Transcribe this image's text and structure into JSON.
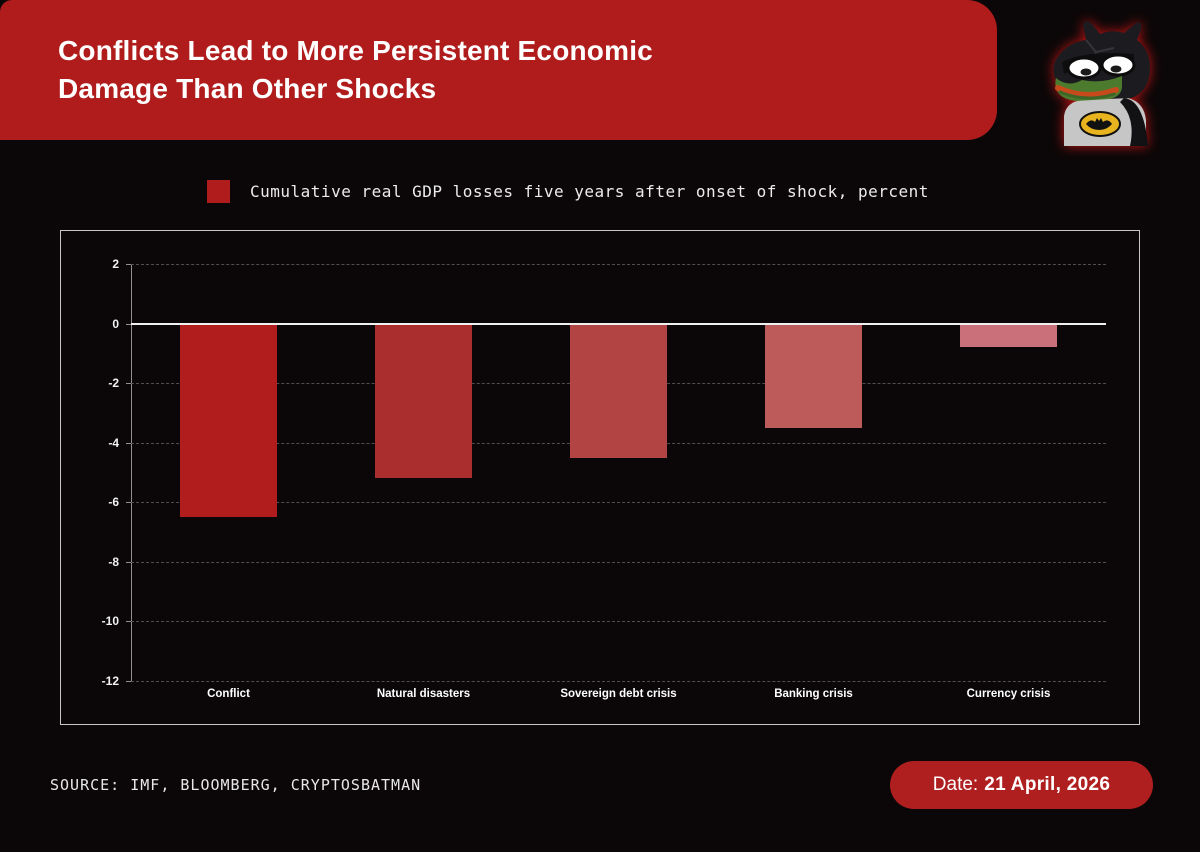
{
  "header": {
    "title_line1": "Conflicts Lead to More Persistent Economic",
    "title_line2": "Damage Than Other Shocks"
  },
  "icons": {
    "mascot": "batman-pepe-mascot-icon"
  },
  "legend": {
    "label": "Cumulative real GDP losses five years after onset of shock, percent",
    "swatch_color": "#b01c1c"
  },
  "chart_data": {
    "type": "bar",
    "title": "Cumulative real GDP losses five years after onset of shock, percent",
    "categories": [
      "Conflict",
      "Natural disasters",
      "Sovereign debt crisis",
      "Banking crisis",
      "Currency crisis"
    ],
    "values": [
      -6.5,
      -5.2,
      -4.5,
      -3.5,
      -0.8
    ],
    "bar_colors": [
      "#b11c1c",
      "#aa2e2e",
      "#b34444",
      "#bd5a5a",
      "#c9707a"
    ],
    "xlabel": "",
    "ylabel": "",
    "ylim": [
      -12,
      2
    ],
    "yticks": [
      2,
      0,
      -2,
      -4,
      -6,
      -8,
      -10,
      -12
    ],
    "grid": "horizontal dashed",
    "zero_line": true,
    "legend_position": "top"
  },
  "footer": {
    "source": "SOURCE: IMF, BLOOMBERG, CRYPTOSBATMAN",
    "date_label": "Date:",
    "date_value": "21 April, 2026"
  },
  "colors": {
    "background": "#0b0708",
    "header_red": "#b01c1c",
    "pill_red": "#b01f1f",
    "chart_border": "#c7c7c7",
    "gridline": "#4f4f4f",
    "zero_line": "#f0f0f0",
    "axis": "#8f8f8f",
    "text_white": "#ffffff"
  }
}
